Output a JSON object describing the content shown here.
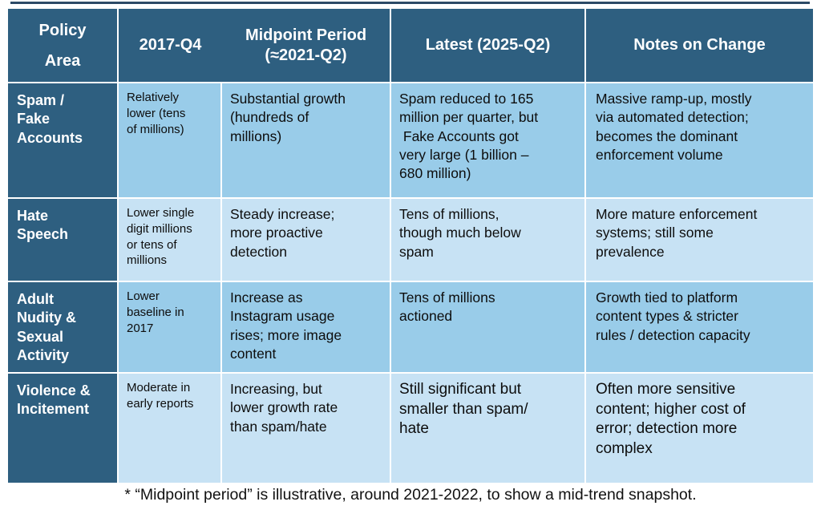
{
  "colors": {
    "header-bg": "#2e5f80",
    "header-text": "#ffffff",
    "row-medium": "#99cce9",
    "row-light": "#c7e2f4",
    "grid-line": "#ffffff",
    "body-text": "#0d0d0d",
    "top-rule": "#2c4a66"
  },
  "table": {
    "header": {
      "policy_area": "Policy\nArea",
      "q2017": "2017-Q4",
      "midpoint": "Midpoint Period\n(≈2021-Q2)",
      "latest": "Latest (2025-Q2)",
      "notes": "Notes on Change"
    },
    "rows": [
      {
        "policy_area": "Spam /\nFake\nAccounts",
        "q2017": "Relatively\nlower (tens\nof millions)",
        "midpoint": "Substantial growth\n(hundreds of\nmillions)",
        "latest": "Spam reduced to 165\nmillion per quarter, but\n Fake Accounts got\nvery large (1 billion –\n680 million)",
        "notes": "Massive ramp-up, mostly\nvia automated detection;\nbecomes the dominant\nenforcement volume"
      },
      {
        "policy_area": "Hate\nSpeech",
        "q2017": "Lower single\ndigit millions\nor tens of\nmillions",
        "midpoint": "Steady increase;\nmore proactive\ndetection",
        "latest": "Tens of millions,\nthough much below\nspam",
        "notes": "More mature enforcement\nsystems; still some\nprevalence"
      },
      {
        "policy_area": "Adult\nNudity &\nSexual\nActivity",
        "q2017": "Lower\nbaseline in\n2017",
        "midpoint": "Increase as\nInstagram usage\nrises; more image\ncontent",
        "latest": "Tens of millions\nactioned",
        "notes": "Growth tied to platform\ncontent types & stricter\nrules / detection capacity"
      },
      {
        "policy_area": "Violence &\nIncitement",
        "q2017": "Moderate in\nearly reports",
        "midpoint": "Increasing, but\nlower growth rate\nthan spam/hate",
        "latest": "Still significant but\nsmaller than spam/\nhate",
        "notes": "Often more sensitive\ncontent; higher cost of\nerror; detection more\ncomplex"
      }
    ]
  },
  "footnote": "* “Midpoint period” is illustrative, around 2021-2022, to show a mid-trend snapshot."
}
